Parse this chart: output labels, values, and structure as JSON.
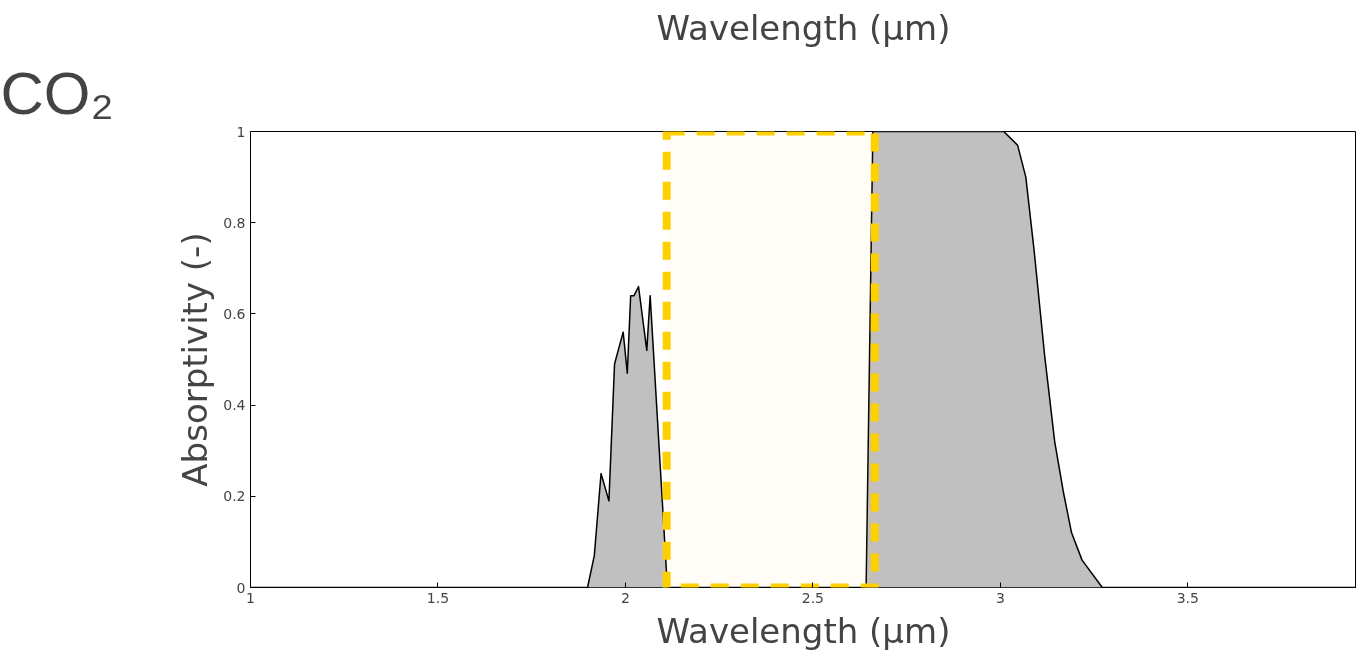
{
  "chart_data": {
    "type": "area",
    "title": "CO₂",
    "xlabel": "Wavelength (μm)",
    "ylabel": "Absorptivity (-)",
    "annotations": [
      "Wavelength (μm)"
    ],
    "x": [
      1,
      1.899,
      1.917,
      1.935,
      1.956,
      1.971,
      1.994,
      2.005,
      2.014,
      2.023,
      2.035,
      2.057,
      2.066,
      2.094,
      2.112,
      2.642,
      2.66,
      3.009,
      3.046,
      3.068,
      3.09,
      3.118,
      3.145,
      3.168,
      3.19,
      3.218,
      3.272,
      3.95
    ],
    "series": [
      {
        "color": "#c0c0c0",
        "values": [
          0,
          0,
          0.07,
          0.25,
          0.19,
          0.49,
          0.56,
          0.47,
          0.64,
          0.64,
          0.66,
          0.52,
          0.64,
          0.25,
          0,
          0,
          1,
          1,
          0.97,
          0.9,
          0.74,
          0.51,
          0.32,
          0.21,
          0.12,
          0.06,
          0,
          0
        ]
      }
    ],
    "xlim": [
      1,
      3.95
    ],
    "xticks": [
      1,
      1.5,
      2,
      2.5,
      3,
      3.5
    ],
    "ylim": [
      0,
      1
    ],
    "yticks": [
      0,
      0.2,
      0.4,
      0.6,
      0.8,
      1
    ],
    "bands": [
      {
        "axis": "x",
        "from": 2.11,
        "to": 2.665,
        "color": "#ffd000"
      }
    ],
    "grid": false
  }
}
